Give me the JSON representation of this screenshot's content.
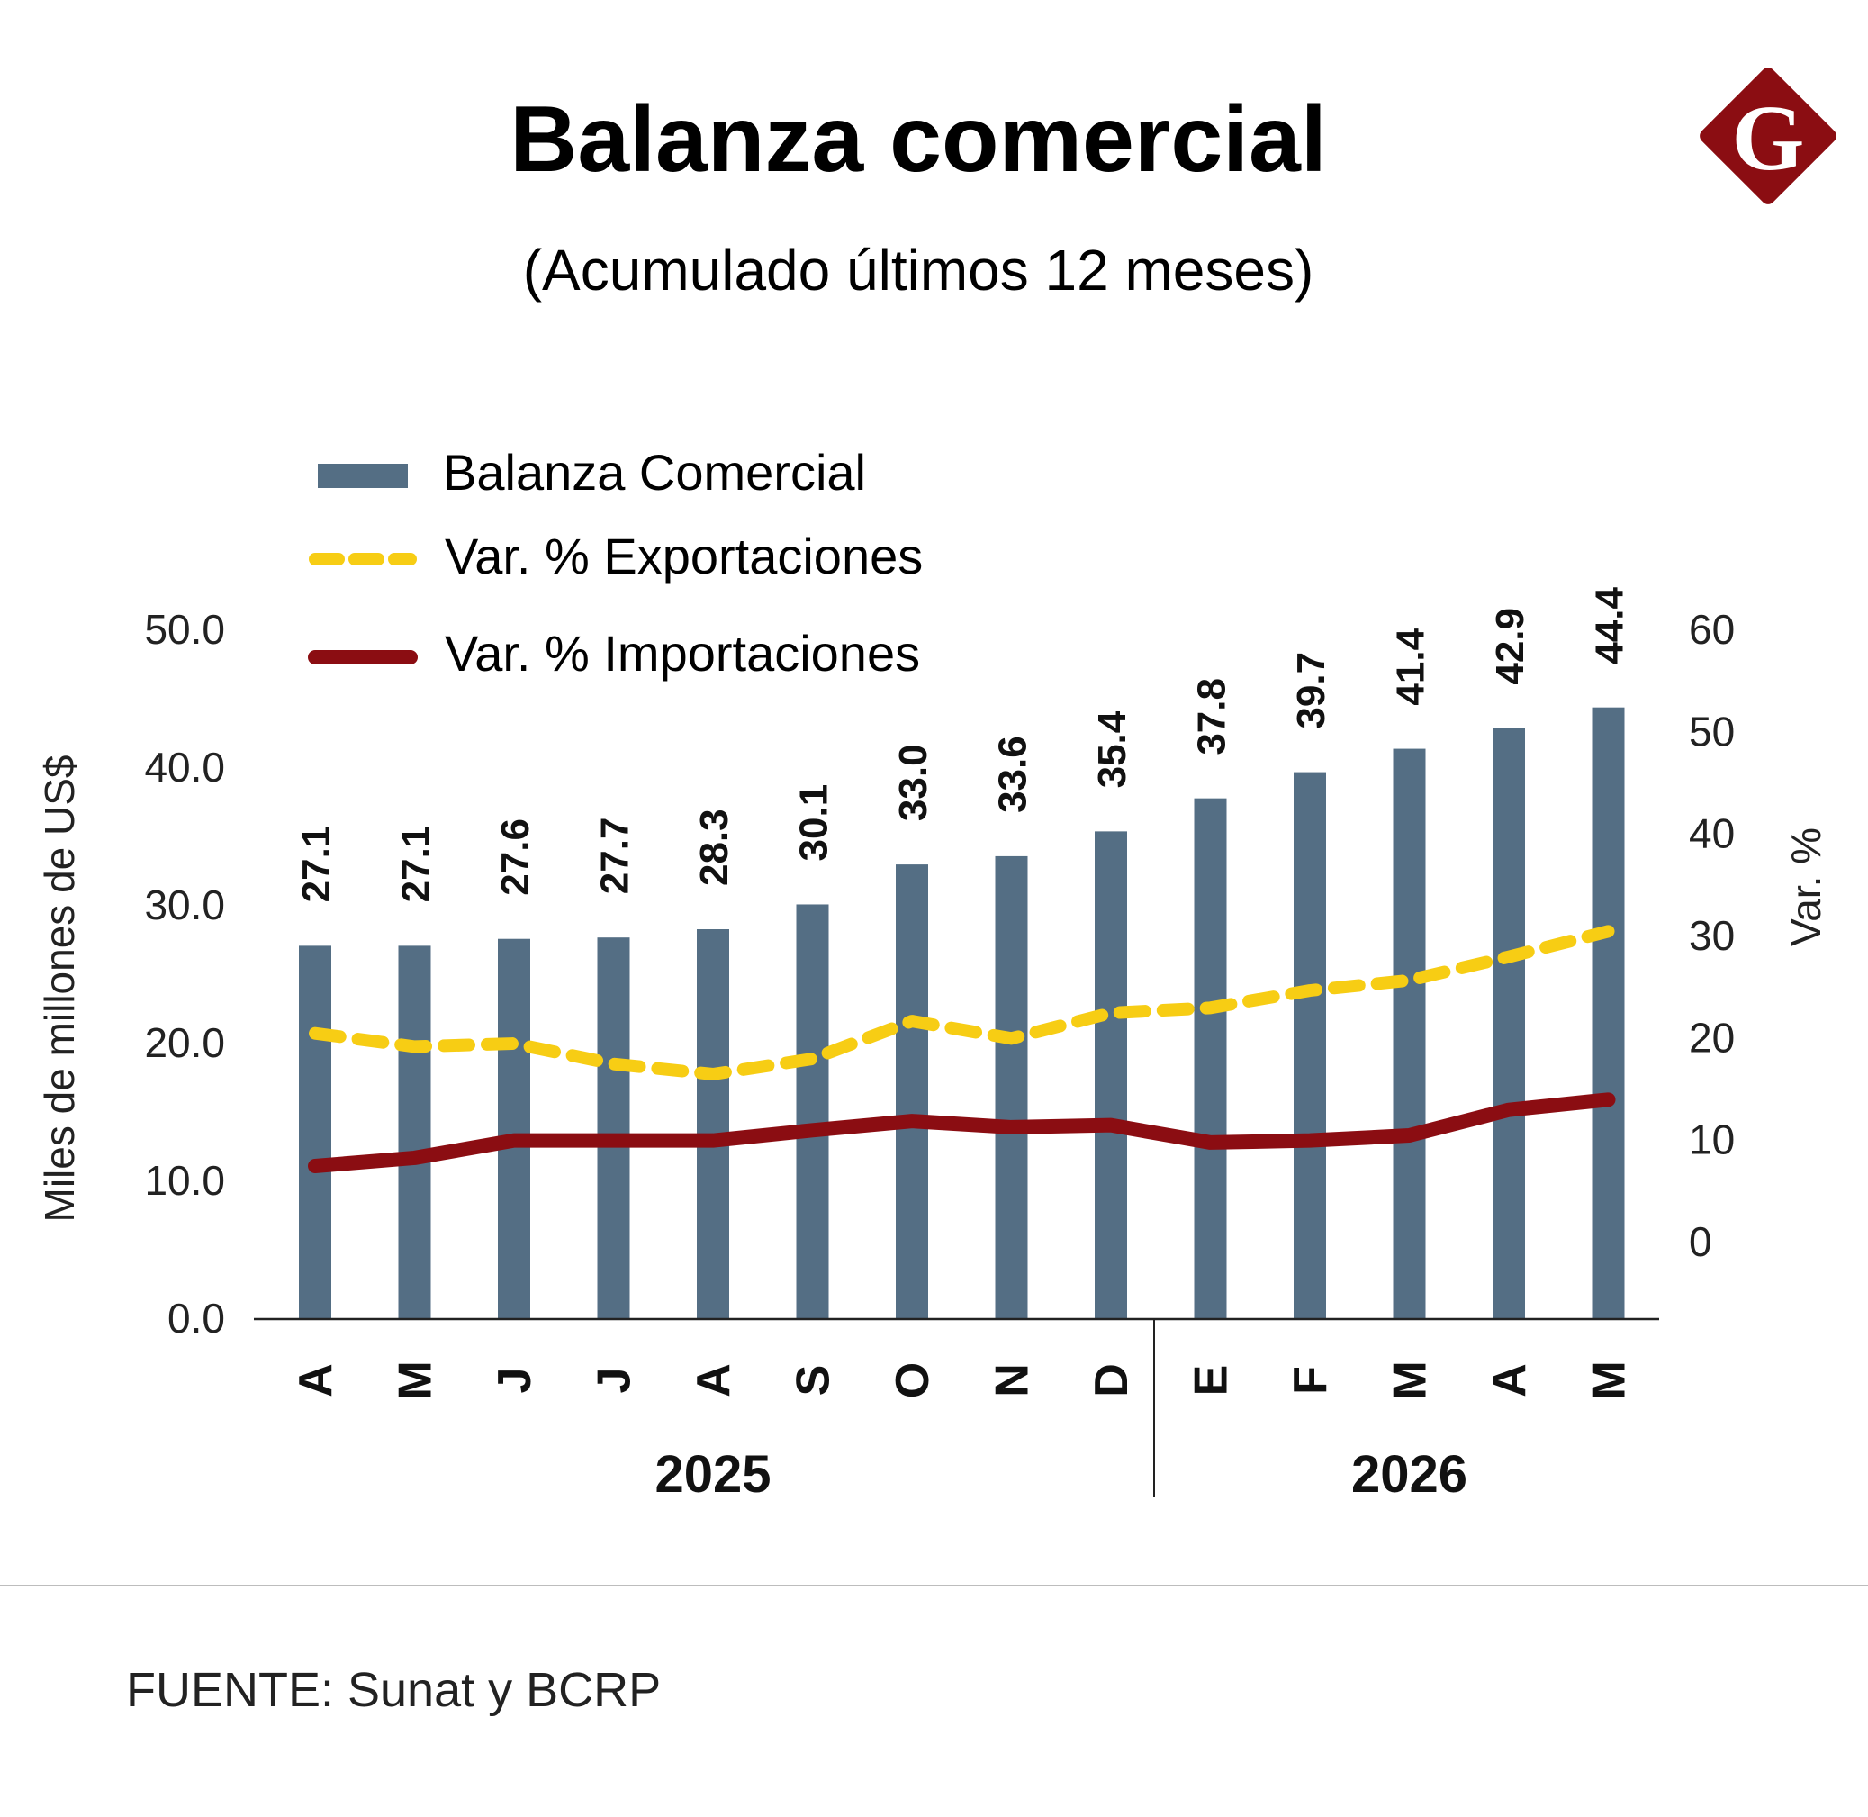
{
  "header": {
    "title": "Balanza comercial",
    "subtitle": "(Acumulado últimos 12 meses)"
  },
  "logo": {
    "letter": "G",
    "color": "#8b0d12",
    "icon": "logo-g-diamond"
  },
  "legend": {
    "items": [
      {
        "label": "Balanza Comercial",
        "style": "bar",
        "color": "#546e84"
      },
      {
        "label": "Var. % Exportaciones",
        "style": "dashed-line",
        "color": "#f7cd14"
      },
      {
        "label": "Var. % Importaciones",
        "style": "solid-line",
        "color": "#8b0d12"
      }
    ]
  },
  "chart_data": {
    "type": "bar",
    "categories": [
      "A",
      "M",
      "J",
      "J",
      "A",
      "S",
      "O",
      "N",
      "D",
      "E",
      "F",
      "M",
      "A",
      "M"
    ],
    "years": [
      {
        "label": "2025",
        "count": 9
      },
      {
        "label": "2026",
        "count": 5
      }
    ],
    "ylabel_left": "Miles de millones de US$",
    "ylabel_right": "Var. %",
    "ylim_left": [
      0,
      50
    ],
    "yticks_left": [
      "0.0",
      "10.0",
      "20.0",
      "30.0",
      "40.0",
      "50.0"
    ],
    "ylim_right": [
      -7.5,
      60
    ],
    "yticks_right": [
      "0",
      "10",
      "20",
      "30",
      "40",
      "50",
      "60"
    ],
    "series": [
      {
        "name": "Balanza Comercial",
        "type": "bar",
        "axis": "left",
        "color": "#546e84",
        "values": [
          27.1,
          27.1,
          27.6,
          27.7,
          28.3,
          30.1,
          33.0,
          33.6,
          35.4,
          37.8,
          39.7,
          41.4,
          42.9,
          44.4
        ],
        "labels": [
          "27.1",
          "27.1",
          "27.6",
          "27.7",
          "28.3",
          "30.1",
          "33.0",
          "33.6",
          "35.4",
          "37.8",
          "39.7",
          "41.4",
          "42.9",
          "44.4"
        ]
      },
      {
        "name": "Var. % Exportaciones",
        "type": "line",
        "style": "dashed",
        "axis": "right",
        "color": "#f7cd14",
        "values": [
          20.5,
          19.2,
          19.5,
          17.5,
          16.5,
          18.0,
          21.7,
          20.0,
          22.5,
          23.0,
          24.7,
          25.7,
          28.0,
          30.5
        ]
      },
      {
        "name": "Var. % Importaciones",
        "type": "line",
        "style": "solid",
        "axis": "right",
        "color": "#8b0d12",
        "values": [
          7.5,
          8.3,
          10.0,
          10.0,
          10.0,
          11.0,
          11.9,
          11.3,
          11.5,
          9.8,
          10.0,
          10.5,
          13.0,
          14.0
        ]
      }
    ],
    "grid": false,
    "legend_position": "top-left"
  },
  "footer": {
    "source": "FUENTE: Sunat y BCRP"
  }
}
